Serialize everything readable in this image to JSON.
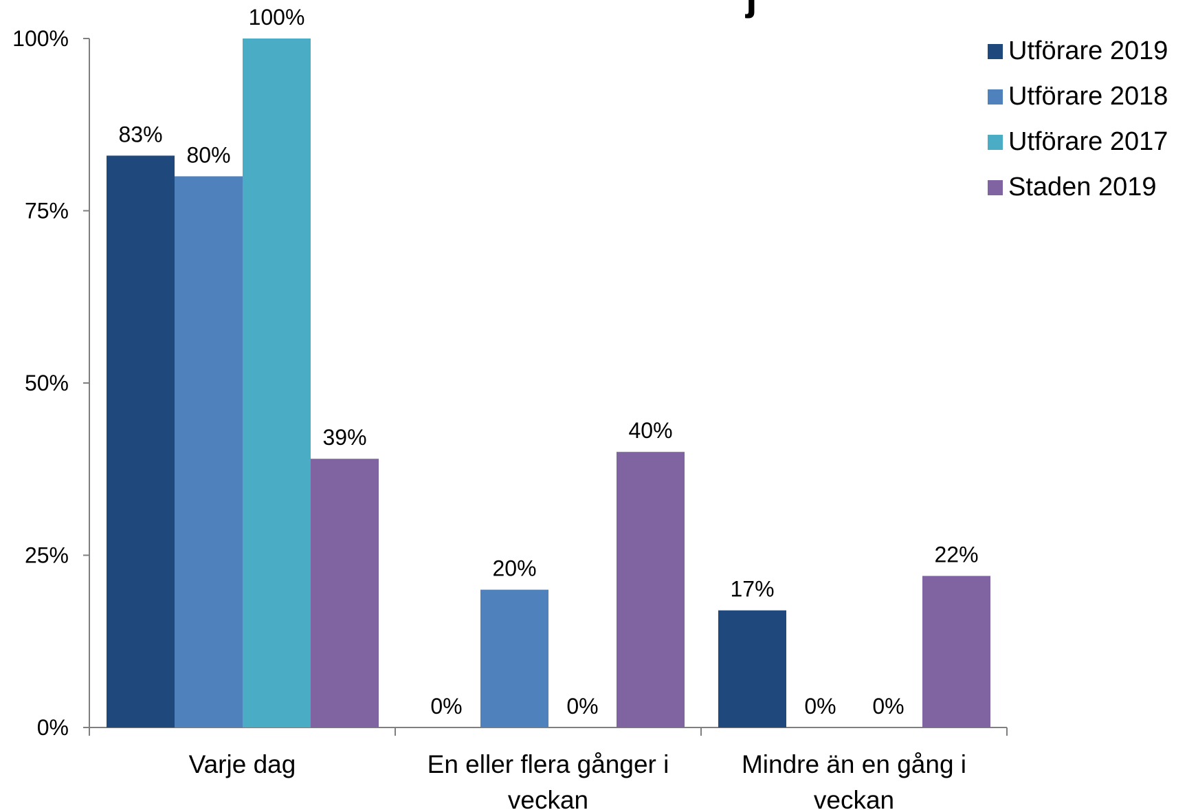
{
  "chart_data": {
    "type": "bar",
    "title_visible_fragment": "j",
    "categories": [
      [
        "Varje dag"
      ],
      [
        "En eller flera gånger i",
        "veckan"
      ],
      [
        "Mindre än en gång i",
        "veckan"
      ]
    ],
    "series": [
      {
        "name": "Utförare 2019",
        "color": "#1F497D",
        "values": [
          83,
          0,
          17
        ],
        "labels": [
          "83%",
          "0%",
          "17%"
        ]
      },
      {
        "name": "Utförare 2018",
        "color": "#4F81BD",
        "values": [
          80,
          20,
          0
        ],
        "labels": [
          "80%",
          "20%",
          "0%"
        ]
      },
      {
        "name": "Utförare 2017",
        "color": "#4BACC6",
        "values": [
          100,
          0,
          0
        ],
        "labels": [
          "100%",
          "0%",
          "0%"
        ]
      },
      {
        "name": "Staden 2019",
        "color": "#8064A2",
        "values": [
          39,
          40,
          22
        ],
        "labels": [
          "39%",
          "40%",
          "22%"
        ]
      }
    ],
    "y_ticks": [
      "0%",
      "25%",
      "50%",
      "75%",
      "100%"
    ],
    "ylim": [
      0,
      100
    ],
    "grid": false,
    "legend_position": "top-right",
    "axis_color": "#7F7F7F"
  }
}
